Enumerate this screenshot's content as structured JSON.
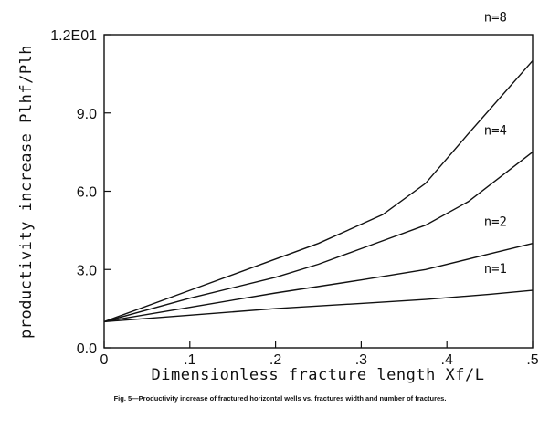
{
  "chart_data": {
    "type": "line",
    "xlabel": "Dimensionless fracture length   Xf/L",
    "ylabel": "productivity  increase   Plhf/Plh",
    "xlim": [
      0,
      0.5
    ],
    "ylim": [
      0,
      12
    ],
    "x_ticks": [
      {
        "value": 0,
        "label": "0"
      },
      {
        "value": 0.1,
        "label": ".1"
      },
      {
        "value": 0.2,
        "label": ".2"
      },
      {
        "value": 0.3,
        "label": ".3"
      },
      {
        "value": 0.4,
        "label": ".4"
      },
      {
        "value": 0.5,
        "label": ".5"
      }
    ],
    "y_ticks": [
      {
        "value": 0,
        "label": "0.0"
      },
      {
        "value": 3,
        "label": "3.0"
      },
      {
        "value": 6,
        "label": "6.0"
      },
      {
        "value": 9,
        "label": "9.0"
      },
      {
        "value": 12,
        "label": "1.2E01"
      }
    ],
    "grid": false,
    "series": [
      {
        "name": "n=1",
        "x": [
          0,
          0.1,
          0.2,
          0.3,
          0.375,
          0.45,
          0.5
        ],
        "y": [
          1.0,
          1.25,
          1.5,
          1.7,
          1.85,
          2.05,
          2.2
        ]
      },
      {
        "name": "n=2",
        "x": [
          0,
          0.1,
          0.2,
          0.3,
          0.375,
          0.45,
          0.5
        ],
        "y": [
          1.0,
          1.55,
          2.1,
          2.6,
          3.0,
          3.6,
          4.0
        ]
      },
      {
        "name": "n=4",
        "x": [
          0,
          0.1,
          0.2,
          0.25,
          0.3,
          0.375,
          0.425,
          0.5
        ],
        "y": [
          1.0,
          1.9,
          2.7,
          3.2,
          3.8,
          4.7,
          5.6,
          7.5
        ]
      },
      {
        "name": "n=8",
        "x": [
          0,
          0.1,
          0.2,
          0.25,
          0.325,
          0.375,
          0.425,
          0.5
        ],
        "y": [
          1.0,
          2.2,
          3.4,
          4.0,
          5.1,
          6.3,
          8.2,
          11.0
        ]
      }
    ]
  },
  "caption": "Fig. 5—Productivity increase of fractured horizontal wells vs. fractures width and number of fractures."
}
